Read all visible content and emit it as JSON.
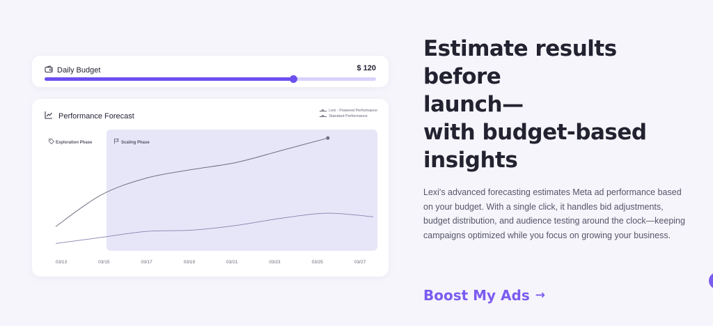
{
  "budget": {
    "label": "Daily Budget",
    "value": "$ 120",
    "slider_level": 0.75,
    "accent": "#6c4ff0",
    "icon": "wallet-icon"
  },
  "forecast": {
    "title": "Performance Forecast",
    "icon": "trend-chart-icon",
    "legend": [
      "Lexi - Powered Performance",
      "Standard Performance"
    ],
    "phases": {
      "exploration": "Exploration Phase",
      "scaling": "Scaling Phase"
    },
    "phase_icons": {
      "exploration": "tag-icon",
      "scaling": "flag-icon"
    },
    "x_ticks": [
      "03/13",
      "03/15",
      "03/17",
      "03/19",
      "03/21",
      "03/23",
      "03/25",
      "03/27"
    ]
  },
  "chart_data": {
    "type": "line",
    "x": [
      "03/13",
      "03/15",
      "03/17",
      "03/19",
      "03/21",
      "03/23",
      "03/25",
      "03/27"
    ],
    "series": [
      {
        "name": "Lexi - Powered Performance",
        "values": [
          20,
          46,
          60,
          67,
          73,
          83,
          93,
          null
        ]
      },
      {
        "name": "Standard Performance",
        "values": [
          6,
          11,
          16,
          17,
          21,
          27,
          31,
          28
        ]
      }
    ],
    "ylim": [
      0,
      100
    ],
    "grid": false,
    "legend_position": "top-right",
    "colors": {
      "lexi": "#6e6e80",
      "standard": "#8a7fb0",
      "scaling_bg": "#e7e6f8"
    }
  },
  "main": {
    "headline": [
      "Estimate results before",
      "launch—",
      "with budget-based",
      "insights"
    ],
    "description": "Lexi's advanced forecasting estimates Meta ad performance based on your budget. With a single click, it handles bid adjustments, budget distribution, and audience testing around the clock—keeping campaigns optimized while you focus on growing your business.",
    "cta_label": "Boost My Ads",
    "cta_arrow": "→"
  },
  "floating_button": {
    "icon": "chat-icon",
    "color": "#7b5cf0"
  }
}
